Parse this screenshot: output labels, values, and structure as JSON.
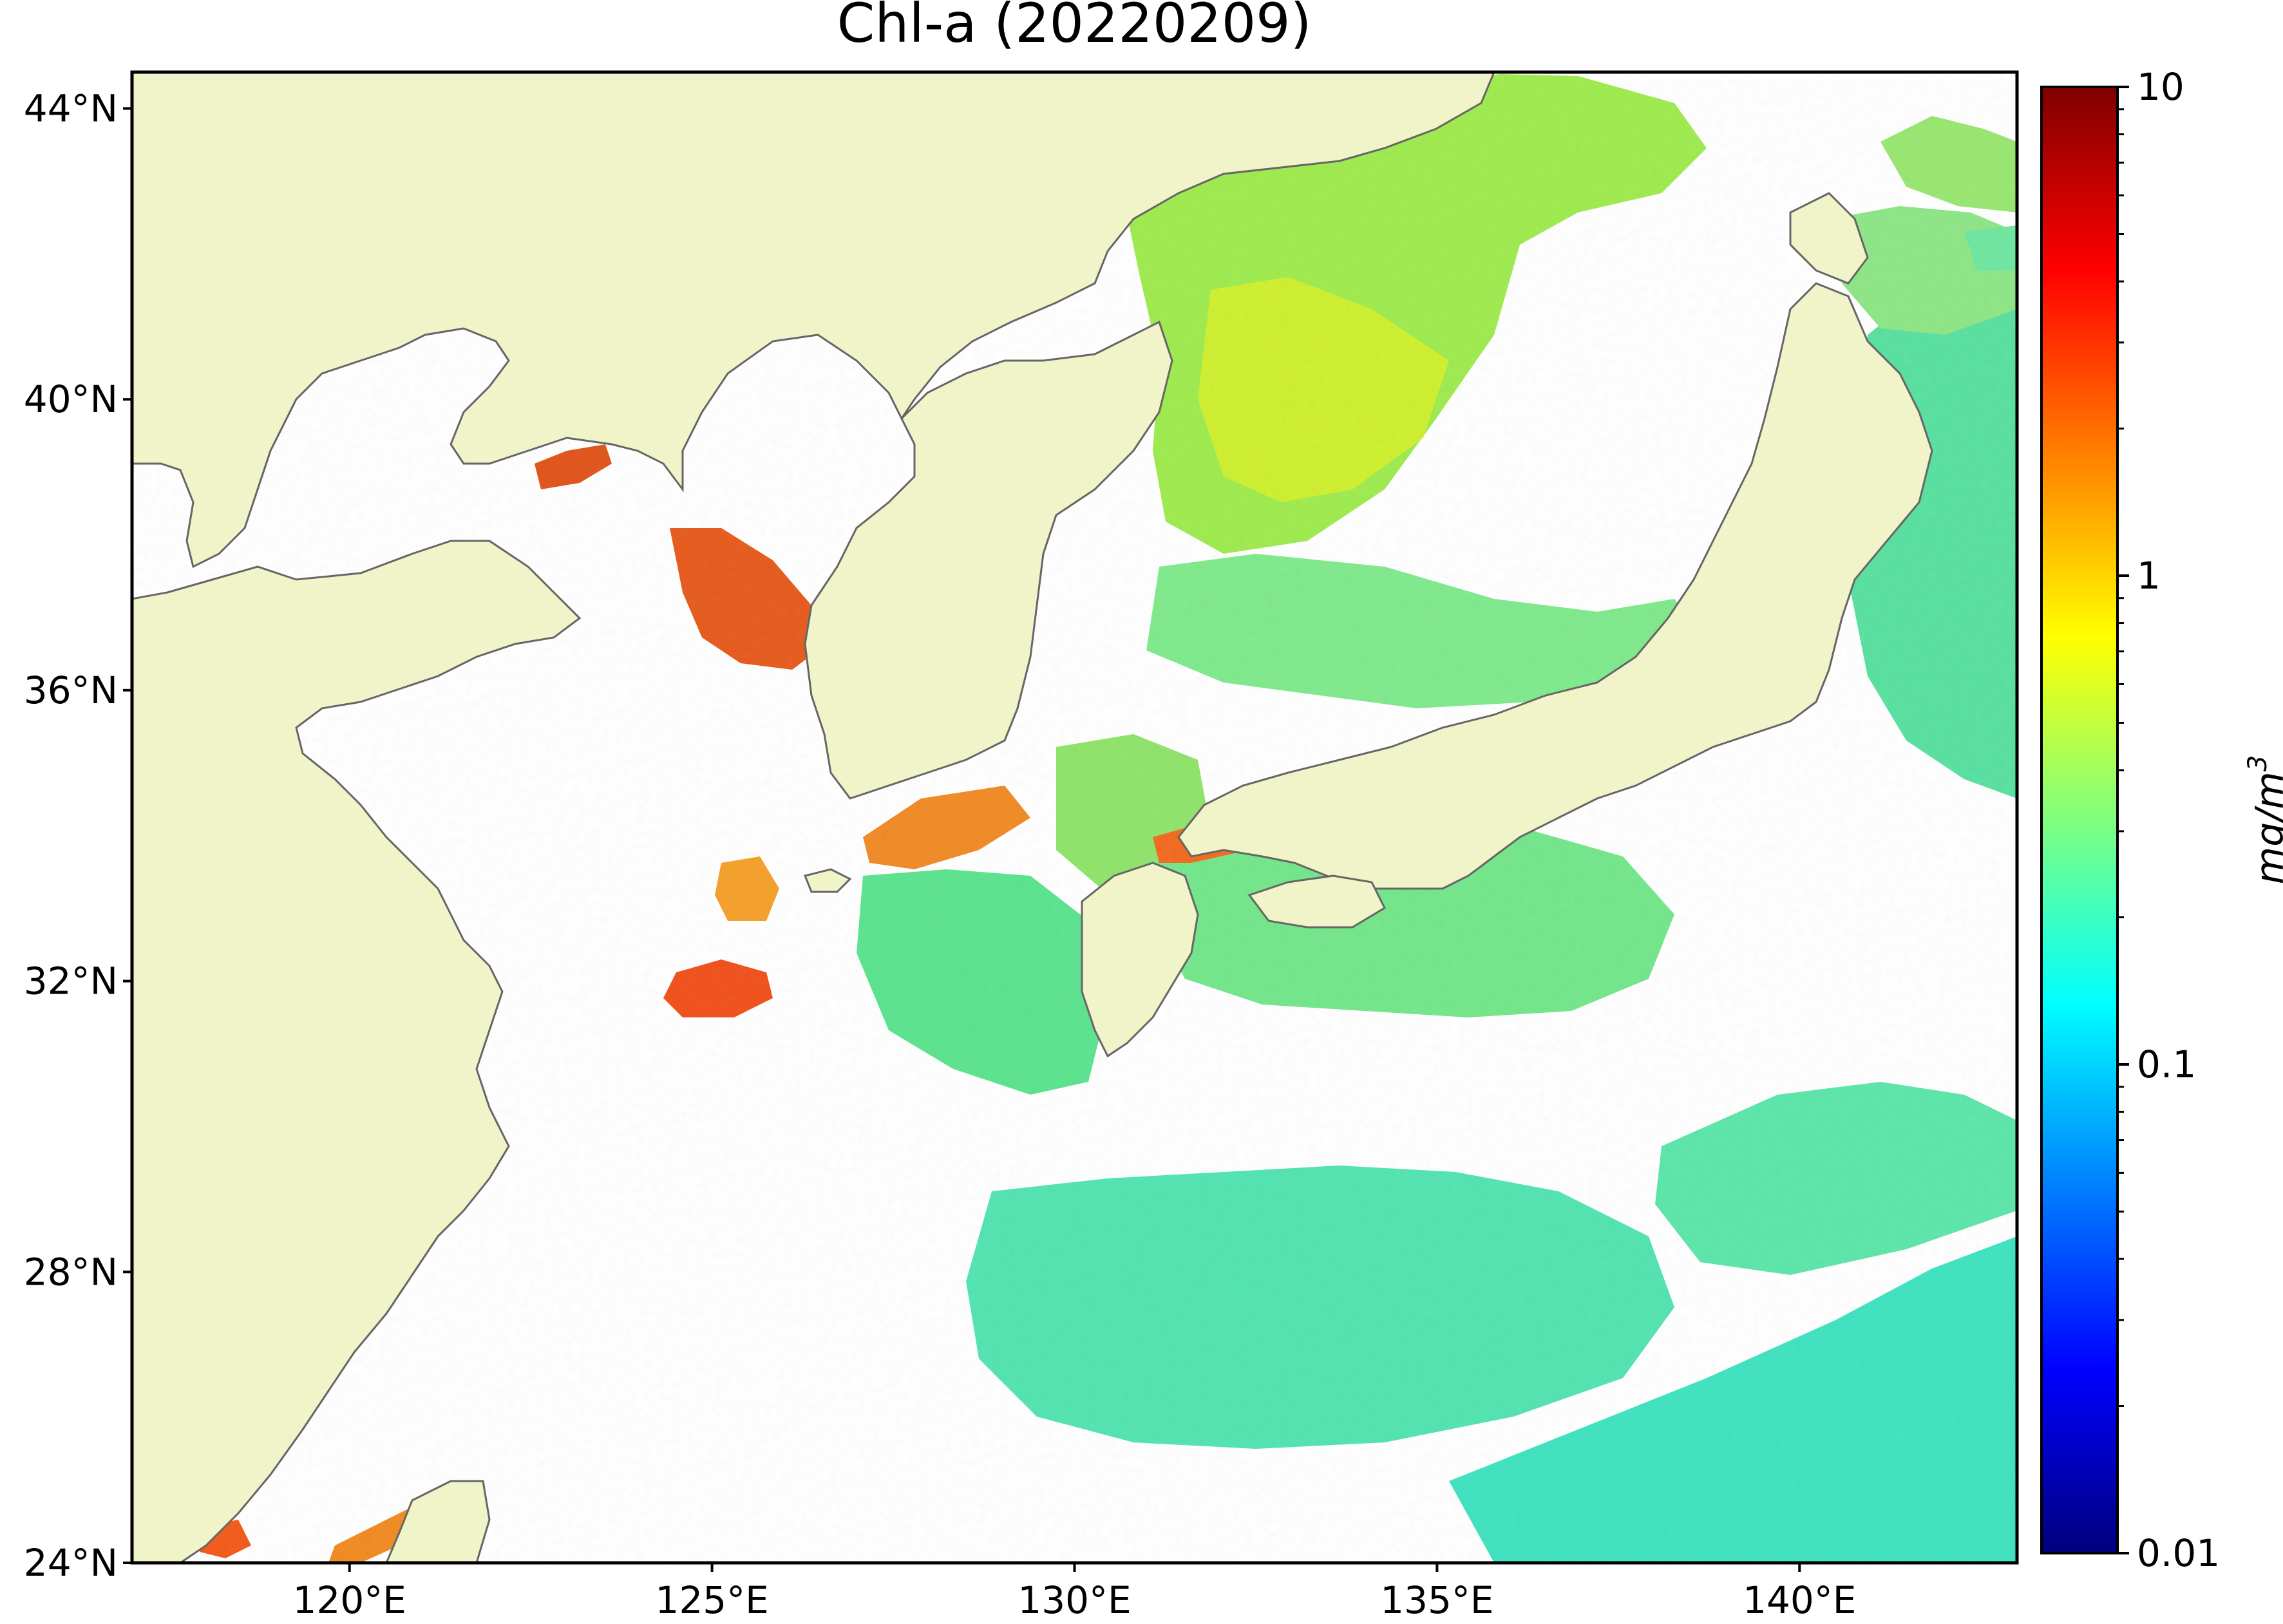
{
  "title": "Chl-a (20220209)",
  "map": {
    "lon_range": [
      117,
      143
    ],
    "lat_range": [
      24,
      44.5
    ],
    "lon_ticks": [
      {
        "value": 120,
        "label": "120°E"
      },
      {
        "value": 125,
        "label": "125°E"
      },
      {
        "value": 130,
        "label": "130°E"
      },
      {
        "value": 135,
        "label": "135°E"
      },
      {
        "value": 140,
        "label": "140°E"
      }
    ],
    "lat_ticks": [
      {
        "value": 24,
        "label": "24°N"
      },
      {
        "value": 28,
        "label": "28°N"
      },
      {
        "value": 32,
        "label": "32°N"
      },
      {
        "value": 36,
        "label": "36°N"
      },
      {
        "value": 40,
        "label": "40°N"
      },
      {
        "value": 44,
        "label": "44°N"
      }
    ],
    "land_color": "#f0f4c8",
    "coast_color": "#666666",
    "no_data_color": "#ffffff"
  },
  "colorbar": {
    "scale": "log",
    "range": [
      0.01,
      10
    ],
    "ticks": [
      {
        "value": 10,
        "label": "10"
      },
      {
        "value": 1,
        "label": "1"
      },
      {
        "value": 0.1,
        "label": "0.1"
      },
      {
        "value": 0.01,
        "label": "0.01"
      }
    ],
    "unit_base": "mg/m",
    "unit_exp": "3",
    "colormap": "jet",
    "colors": [
      "#00007f",
      "#0000ff",
      "#007fff",
      "#00ffff",
      "#7fff7f",
      "#ffff00",
      "#ff7f00",
      "#ff0000",
      "#7f0000"
    ]
  }
}
